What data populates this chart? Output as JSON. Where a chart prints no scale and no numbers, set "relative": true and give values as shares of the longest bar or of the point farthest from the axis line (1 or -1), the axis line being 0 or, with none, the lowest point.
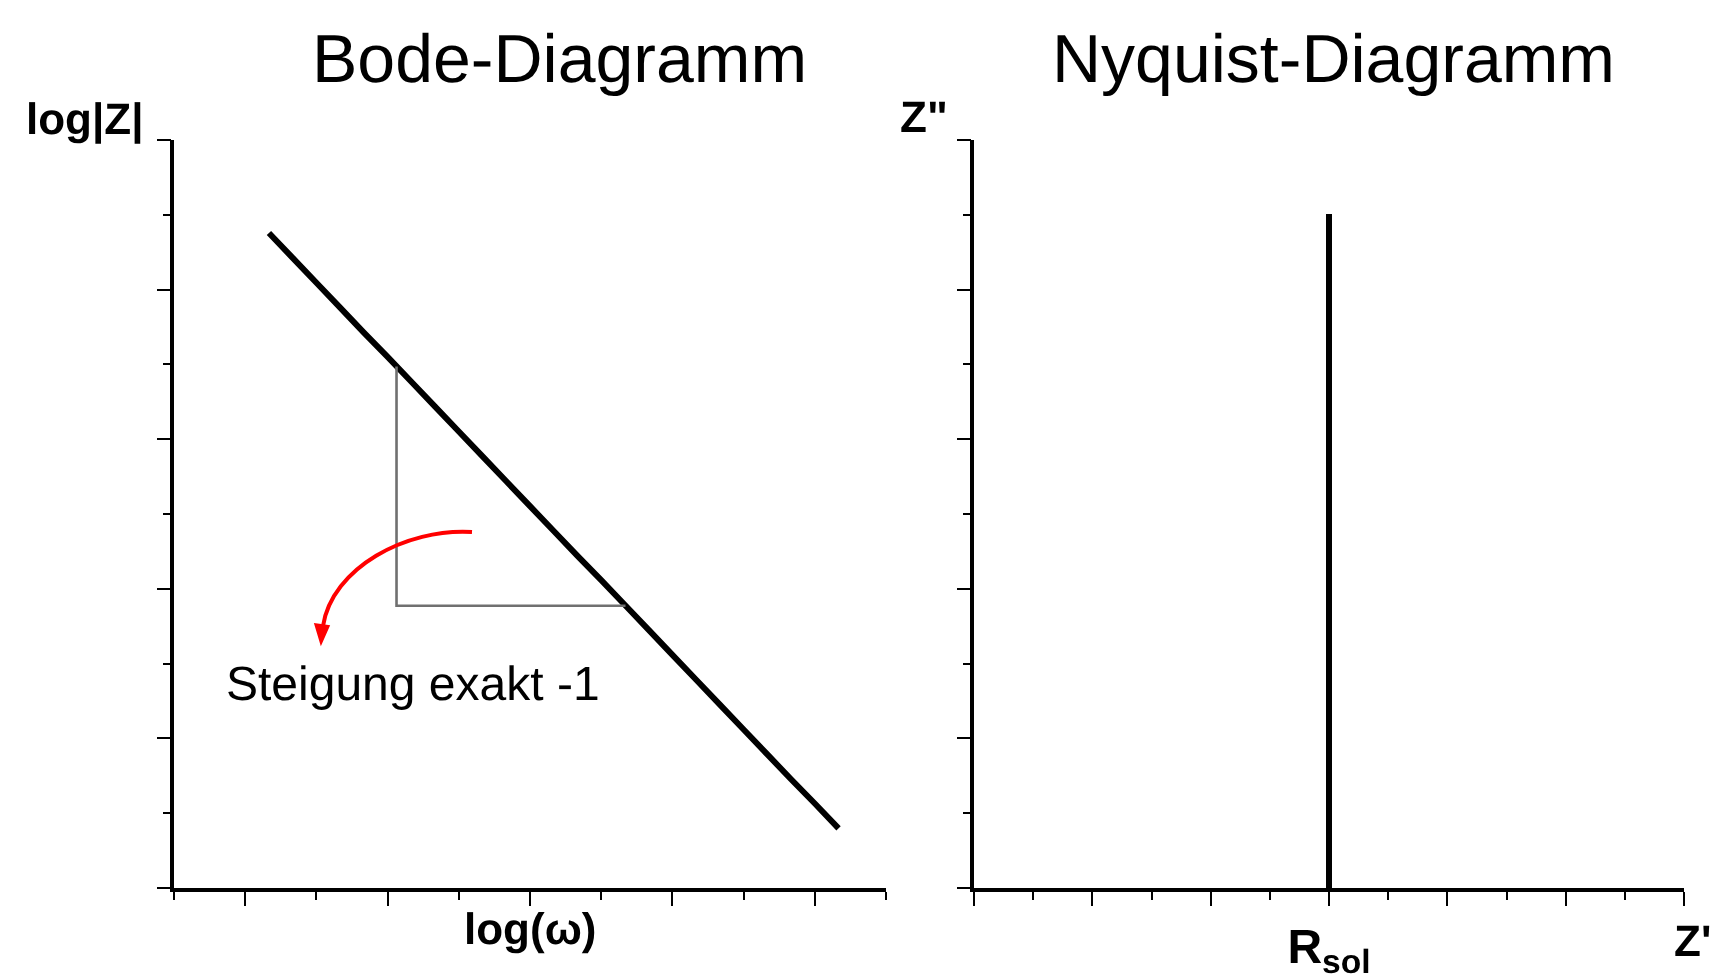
{
  "chart_data": [
    {
      "type": "line",
      "title": "Bode-Diagramm",
      "xlabel": "log(ω)",
      "ylabel": "log|Z|",
      "relative": true,
      "categories": [
        null,
        null,
        null,
        null,
        null,
        null,
        null,
        null,
        null,
        null,
        null,
        null,
        null,
        null,
        null,
        null,
        null,
        null,
        null,
        null,
        null,
        null,
        null,
        null,
        null,
        null,
        null,
        null,
        null,
        null,
        null
      ],
      "series": [
        {
          "color": "#000000",
          "values": [
            null,
            null,
            null,
            null,
            1,
            0.962,
            0.924,
            0.886,
            0.848,
            0.811,
            0.773,
            0.735,
            0.697,
            0.659,
            0.621,
            0.583,
            0.545,
            0.507,
            0.47,
            0.432,
            0.394,
            0.356,
            0.318,
            0.28,
            0.242,
            0.204,
            0.166,
            0.129,
            0.091,
            null,
            null
          ]
        }
      ],
      "annotations": [
        "Steigung exakt -1"
      ],
      "tick_labels": false
    },
    {
      "type": "bar",
      "title": "Nyquist-Diagramm",
      "xlabel": "Z'",
      "ylabel": "Z\"",
      "relative": true,
      "categories": [
        "R$_{sol}$"
      ],
      "series": [
        {
          "color": "#000000",
          "values": [
            1
          ]
        }
      ],
      "tick_labels": "x"
    }
  ]
}
